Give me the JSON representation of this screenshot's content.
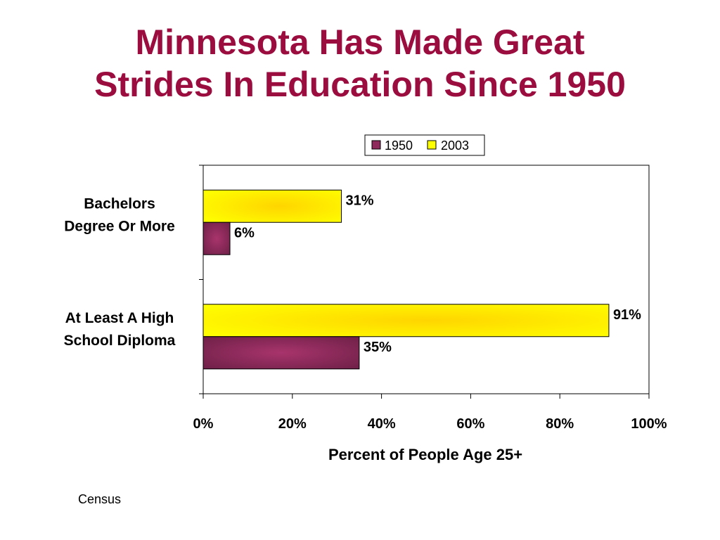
{
  "title": {
    "line1": "Minnesota Has Made Great",
    "line2": "Strides In Education Since 1950",
    "color": "#9b0d3f"
  },
  "source": "Census",
  "chart_data": {
    "type": "bar",
    "orientation": "horizontal",
    "categories": [
      "Bachelors\nDegree Or More",
      "At Least A High\nSchool Diploma"
    ],
    "series": [
      {
        "name": "1950",
        "values": [
          6,
          35
        ],
        "labels": [
          "6%",
          "35%"
        ],
        "color": "#8e2a5c"
      },
      {
        "name": "2003",
        "values": [
          31,
          91
        ],
        "labels": [
          "31%",
          "91%"
        ],
        "color": "#ffff00"
      }
    ],
    "xlim": [
      0,
      100
    ],
    "xticks": [
      0,
      20,
      40,
      60,
      80,
      100
    ],
    "xtick_labels": [
      "0%",
      "20%",
      "40%",
      "60%",
      "80%",
      "100%"
    ],
    "xlabel": "Percent of People Age 25+",
    "ylabel": "",
    "grid": false,
    "legend_position": "top-center"
  }
}
